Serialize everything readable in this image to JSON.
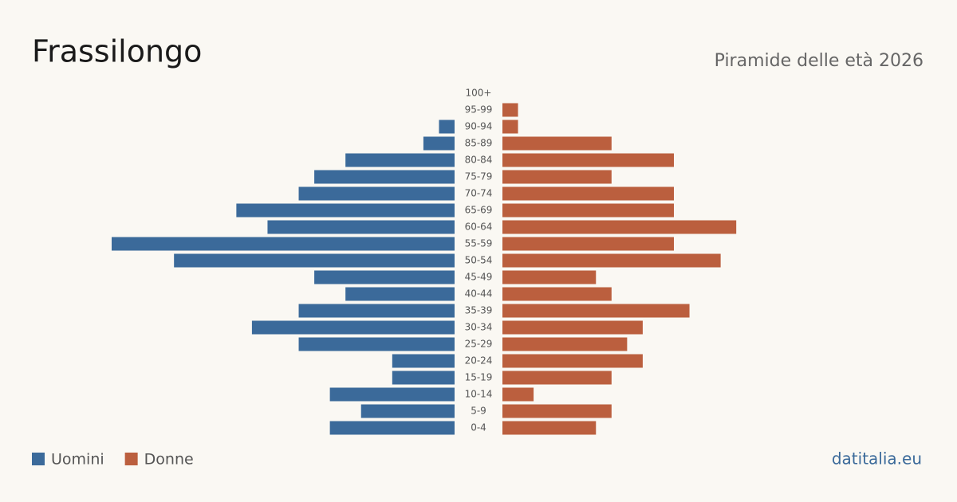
{
  "chart_data": {
    "type": "pyramid",
    "title": "Frassilongo",
    "subtitle": "Piramide delle età 2026",
    "source": "datitalia.eu",
    "categories": [
      "100+",
      "95-99",
      "90-94",
      "85-89",
      "80-84",
      "75-79",
      "70-74",
      "65-69",
      "60-64",
      "55-59",
      "50-54",
      "45-49",
      "40-44",
      "35-39",
      "30-34",
      "25-29",
      "20-24",
      "15-19",
      "10-14",
      "5-9",
      "0-4"
    ],
    "series": [
      {
        "name": "Uomini",
        "color": "#3b6a9a",
        "values": [
          0,
          0,
          1,
          2,
          7,
          9,
          10,
          14,
          12,
          22,
          18,
          9,
          7,
          10,
          13,
          10,
          4,
          4,
          8,
          6,
          8
        ]
      },
      {
        "name": "Donne",
        "color": "#bb5f3e",
        "values": [
          0,
          1,
          1,
          7,
          11,
          7,
          11,
          11,
          15,
          11,
          14,
          6,
          7,
          12,
          9,
          8,
          9,
          7,
          2,
          7,
          6
        ]
      }
    ],
    "xlim": [
      0,
      22
    ]
  }
}
